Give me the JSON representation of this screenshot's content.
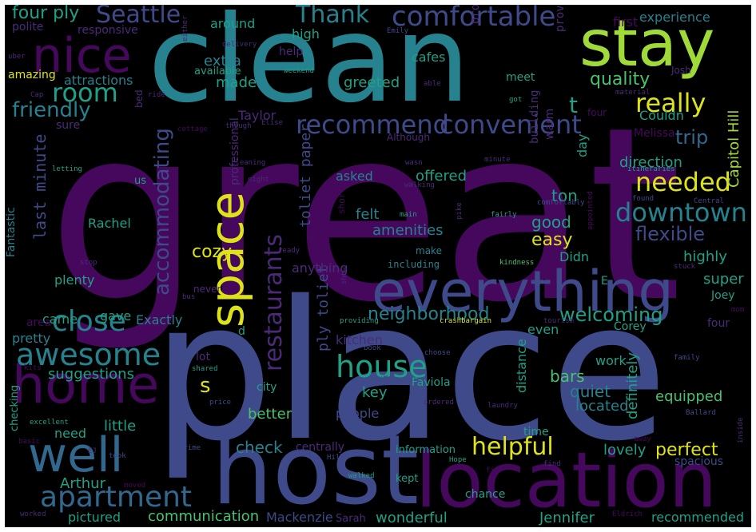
{
  "wordcloud": {
    "background": "#000000",
    "palette": {
      "dark_purple": "#46085c",
      "purple": "#4b2a78",
      "indigo": "#3e4a89",
      "blue": "#31688e",
      "teal": "#26828e",
      "green": "#1fa187",
      "light_green": "#4ac16d",
      "lime": "#a0da39",
      "yellow": "#dde318"
    },
    "words": [
      {
        "text": "great"
      },
      {
        "text": "clean"
      },
      {
        "text": "place"
      },
      {
        "text": "host"
      },
      {
        "text": "location"
      },
      {
        "text": "stay"
      },
      {
        "text": "everything"
      },
      {
        "text": "home"
      },
      {
        "text": "nice"
      },
      {
        "text": "well"
      },
      {
        "text": "space"
      },
      {
        "text": "awesome"
      },
      {
        "text": "house"
      },
      {
        "text": "apartment"
      },
      {
        "text": "close"
      },
      {
        "text": "recommend"
      },
      {
        "text": "convenient"
      },
      {
        "text": "downtown"
      },
      {
        "text": "comfortable"
      },
      {
        "text": "Seattle"
      },
      {
        "text": "Thank"
      },
      {
        "text": "really"
      },
      {
        "text": "helpful"
      },
      {
        "text": "needed"
      },
      {
        "text": "room"
      },
      {
        "text": "friendly"
      },
      {
        "text": "restaurants"
      },
      {
        "text": "accommodating"
      },
      {
        "text": "neighborhood"
      },
      {
        "text": "four ply"
      },
      {
        "text": "t"
      },
      {
        "text": "s"
      },
      {
        "text": "quality"
      },
      {
        "text": "trip"
      },
      {
        "text": "welcoming"
      },
      {
        "text": "perfect"
      },
      {
        "text": "flexible"
      },
      {
        "text": "cozy"
      },
      {
        "text": "suggestions"
      },
      {
        "text": "communication"
      },
      {
        "text": "recommended"
      },
      {
        "text": "Capitol Hill"
      },
      {
        "text": "last minute"
      },
      {
        "text": "toliet paper"
      },
      {
        "text": "ply toliet"
      },
      {
        "text": "check"
      },
      {
        "text": "equipped"
      },
      {
        "text": "lovely"
      },
      {
        "text": "Mackenzie"
      },
      {
        "text": "wonderful"
      },
      {
        "text": "Jennifer"
      },
      {
        "text": "direction"
      },
      {
        "text": "easy"
      },
      {
        "text": "good"
      },
      {
        "text": "ton"
      },
      {
        "text": "bars"
      },
      {
        "text": "quiet"
      },
      {
        "text": "located"
      },
      {
        "text": "distance"
      },
      {
        "text": "definitely"
      },
      {
        "text": "work"
      },
      {
        "text": "Arthur"
      },
      {
        "text": "pictured"
      },
      {
        "text": "kitchen"
      },
      {
        "text": "little"
      },
      {
        "text": "better"
      },
      {
        "text": "key"
      },
      {
        "text": "people"
      },
      {
        "text": "extra"
      },
      {
        "text": "made"
      },
      {
        "text": "greeted"
      },
      {
        "text": "offered"
      },
      {
        "text": "felt"
      },
      {
        "text": "amenities"
      },
      {
        "text": "highly"
      },
      {
        "text": "super"
      },
      {
        "text": "Rachel"
      },
      {
        "text": "Taylor"
      },
      {
        "text": "even"
      },
      {
        "text": "cafes"
      },
      {
        "text": "attractions"
      },
      {
        "text": "around"
      },
      {
        "text": "high"
      },
      {
        "text": "polite"
      },
      {
        "text": "responsive"
      },
      {
        "text": "amazing"
      },
      {
        "text": "available"
      },
      {
        "text": "help"
      },
      {
        "text": "first"
      },
      {
        "text": "experience"
      },
      {
        "text": "meet"
      },
      {
        "text": "provides"
      },
      {
        "text": "provided"
      },
      {
        "text": "Couldn"
      },
      {
        "text": "Melissa"
      },
      {
        "text": "day"
      },
      {
        "text": "building"
      },
      {
        "text": "warm"
      },
      {
        "text": "asked"
      },
      {
        "text": "anything"
      },
      {
        "text": "plenty"
      },
      {
        "text": "came"
      },
      {
        "text": "gave"
      },
      {
        "text": "Exactly"
      },
      {
        "text": "pretty"
      },
      {
        "text": "area"
      },
      {
        "text": "Fantastic"
      },
      {
        "text": "sure"
      },
      {
        "text": "professional"
      },
      {
        "text": "Didn"
      },
      {
        "text": "Corey"
      },
      {
        "text": "Joey"
      },
      {
        "text": "four"
      },
      {
        "text": "E"
      },
      {
        "text": "lot"
      },
      {
        "text": "d"
      },
      {
        "text": "city"
      },
      {
        "text": "Faviola"
      },
      {
        "text": "need"
      },
      {
        "text": "checking"
      },
      {
        "text": "centrally"
      },
      {
        "text": "information"
      },
      {
        "text": "time"
      },
      {
        "text": "kept"
      },
      {
        "text": "chance"
      },
      {
        "text": "Sarah"
      },
      {
        "text": "spacious"
      },
      {
        "text": "us"
      },
      {
        "text": "bed"
      },
      {
        "text": "including"
      },
      {
        "text": "make"
      },
      {
        "text": "Although"
      },
      {
        "text": "four"
      },
      {
        "text": "Emily"
      },
      {
        "text": "delivery"
      },
      {
        "text": "either"
      },
      {
        "text": "uber"
      },
      {
        "text": "weekend"
      },
      {
        "text": "able"
      },
      {
        "text": "Cap"
      },
      {
        "text": "ride"
      },
      {
        "text": "Josh"
      },
      {
        "text": "material"
      },
      {
        "text": "got"
      },
      {
        "text": "cottage"
      },
      {
        "text": "though"
      },
      {
        "text": "Elise"
      },
      {
        "text": "cleaning"
      },
      {
        "text": "letting"
      },
      {
        "text": "night"
      },
      {
        "text": "wasn"
      },
      {
        "text": "walking"
      },
      {
        "text": "minute"
      },
      {
        "text": "itineraries"
      },
      {
        "text": "found"
      },
      {
        "text": "Central"
      },
      {
        "text": "comfortably"
      },
      {
        "text": "main"
      },
      {
        "text": "pike"
      },
      {
        "text": "fairly"
      },
      {
        "text": "short"
      },
      {
        "text": "appointed"
      },
      {
        "text": "stop"
      },
      {
        "text": "ready"
      },
      {
        "text": "kindness"
      },
      {
        "text": "stuck"
      },
      {
        "text": "never"
      },
      {
        "text": "bus"
      },
      {
        "text": "show"
      },
      {
        "text": "providing"
      },
      {
        "text": "crashbargain"
      },
      {
        "text": "tourism"
      },
      {
        "text": "mom"
      },
      {
        "text": "book"
      },
      {
        "text": "choose"
      },
      {
        "text": "family"
      },
      {
        "text": "kits"
      },
      {
        "text": "shared"
      },
      {
        "text": "cute"
      },
      {
        "text": "ordered"
      },
      {
        "text": "laundry"
      },
      {
        "text": "Ballard"
      },
      {
        "text": "excellent"
      },
      {
        "text": "price"
      },
      {
        "text": "basic"
      },
      {
        "text": "EJ"
      },
      {
        "text": "took"
      },
      {
        "text": "prime"
      },
      {
        "text": "Hope"
      },
      {
        "text": "Hill"
      },
      {
        "text": "find"
      },
      {
        "text": "away"
      },
      {
        "text": "inside"
      },
      {
        "text": "moved"
      },
      {
        "text": "walked"
      },
      {
        "text": "fit"
      },
      {
        "text": "Eldrich"
      },
      {
        "text": "worked"
      }
    ]
  }
}
